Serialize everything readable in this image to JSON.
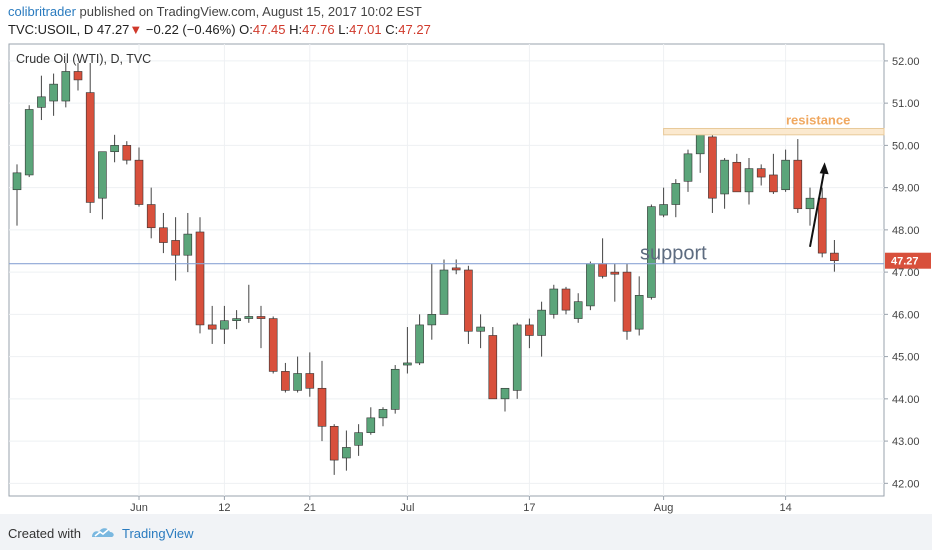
{
  "header": {
    "author": "colibritrader",
    "published_text": "published on TradingView.com, August 15, 2017 10:02 EST",
    "symbol": "TVC:USOIL, D",
    "last": "47.27",
    "change": "−0.22 (−0.46%)",
    "open_label": "O:",
    "open": "47.45",
    "high_label": "H:",
    "high": "47.76",
    "low_label": "L:",
    "low": "47.01",
    "close_label": "C:",
    "close": "47.27"
  },
  "footer": {
    "created_with": "Created with",
    "brand": "TradingView"
  },
  "colors": {
    "up": "#5ba57a",
    "down": "#d8503c",
    "wick": "#444444",
    "support_line": "#8da6d6",
    "resistance_fill": "#fbe9cf",
    "resistance_text": "#f0a860",
    "price_tag": "#d8503c"
  },
  "chart_data": {
    "type": "candlestick",
    "title": "Crude Oil (WTI), D, TVC",
    "ylim": [
      41.7,
      52.4
    ],
    "y_ticks": [
      "52.00",
      "51.00",
      "50.00",
      "49.00",
      "48.00",
      "47.00",
      "46.00",
      "45.00",
      "44.00",
      "43.00",
      "42.00"
    ],
    "x_tick_labels": [
      {
        "label": "Jun",
        "index": 10
      },
      {
        "label": "12",
        "index": 17
      },
      {
        "label": "21",
        "index": 24
      },
      {
        "label": "Jul",
        "index": 32
      },
      {
        "label": "17",
        "index": 42
      },
      {
        "label": "Aug",
        "index": 53
      },
      {
        "label": "14",
        "index": 63
      }
    ],
    "last_price": "47.27",
    "support": {
      "label": "support",
      "value": 47.2
    },
    "resistance": {
      "label": "resistance",
      "low": 50.25,
      "high": 50.4,
      "from_index": 53
    },
    "arrow": {
      "from_index": 65,
      "from_value": 47.6,
      "to_index": 66.2,
      "to_value": 49.6
    },
    "candles": [
      {
        "o": 48.95,
        "h": 49.55,
        "l": 48.1,
        "c": 49.35
      },
      {
        "o": 49.3,
        "h": 50.95,
        "l": 49.25,
        "c": 50.85
      },
      {
        "o": 50.9,
        "h": 51.65,
        "l": 50.6,
        "c": 51.15
      },
      {
        "o": 51.05,
        "h": 51.7,
        "l": 50.7,
        "c": 51.45
      },
      {
        "o": 51.05,
        "h": 51.95,
        "l": 50.9,
        "c": 51.75
      },
      {
        "o": 51.75,
        "h": 51.95,
        "l": 51.3,
        "c": 51.55
      },
      {
        "o": 51.25,
        "h": 51.95,
        "l": 48.4,
        "c": 48.65
      },
      {
        "o": 48.75,
        "h": 49.8,
        "l": 48.25,
        "c": 49.85
      },
      {
        "o": 49.85,
        "h": 50.25,
        "l": 49.6,
        "c": 50.0
      },
      {
        "o": 50.0,
        "h": 50.1,
        "l": 49.55,
        "c": 49.65
      },
      {
        "o": 49.65,
        "h": 49.95,
        "l": 48.55,
        "c": 48.6
      },
      {
        "o": 48.6,
        "h": 49.0,
        "l": 47.8,
        "c": 48.05
      },
      {
        "o": 48.05,
        "h": 48.4,
        "l": 47.45,
        "c": 47.7
      },
      {
        "o": 47.75,
        "h": 48.3,
        "l": 46.8,
        "c": 47.4
      },
      {
        "o": 47.4,
        "h": 48.4,
        "l": 47.0,
        "c": 47.9
      },
      {
        "o": 47.95,
        "h": 48.3,
        "l": 45.55,
        "c": 45.75
      },
      {
        "o": 45.75,
        "h": 46.2,
        "l": 45.3,
        "c": 45.65
      },
      {
        "o": 45.65,
        "h": 46.2,
        "l": 45.3,
        "c": 45.85
      },
      {
        "o": 45.85,
        "h": 46.1,
        "l": 45.65,
        "c": 45.9
      },
      {
        "o": 45.9,
        "h": 46.7,
        "l": 45.8,
        "c": 45.95
      },
      {
        "o": 45.95,
        "h": 46.2,
        "l": 45.2,
        "c": 45.9
      },
      {
        "o": 45.9,
        "h": 45.95,
        "l": 44.6,
        "c": 44.65
      },
      {
        "o": 44.65,
        "h": 44.85,
        "l": 44.15,
        "c": 44.2
      },
      {
        "o": 44.2,
        "h": 45.0,
        "l": 44.15,
        "c": 44.6
      },
      {
        "o": 44.6,
        "h": 45.1,
        "l": 44.05,
        "c": 44.25
      },
      {
        "o": 44.25,
        "h": 44.9,
        "l": 43.0,
        "c": 43.35
      },
      {
        "o": 43.35,
        "h": 43.4,
        "l": 42.2,
        "c": 42.55
      },
      {
        "o": 42.6,
        "h": 43.25,
        "l": 42.3,
        "c": 42.85
      },
      {
        "o": 42.9,
        "h": 43.4,
        "l": 42.65,
        "c": 43.2
      },
      {
        "o": 43.2,
        "h": 43.8,
        "l": 43.15,
        "c": 43.55
      },
      {
        "o": 43.55,
        "h": 43.8,
        "l": 43.35,
        "c": 43.75
      },
      {
        "o": 43.75,
        "h": 44.8,
        "l": 43.65,
        "c": 44.7
      },
      {
        "o": 44.8,
        "h": 45.7,
        "l": 44.6,
        "c": 44.85
      },
      {
        "o": 44.85,
        "h": 46.0,
        "l": 44.8,
        "c": 45.75
      },
      {
        "o": 45.75,
        "h": 47.2,
        "l": 45.4,
        "c": 46.0
      },
      {
        "o": 46.0,
        "h": 47.3,
        "l": 46.0,
        "c": 47.05
      },
      {
        "o": 47.1,
        "h": 47.3,
        "l": 46.95,
        "c": 47.05
      },
      {
        "o": 47.05,
        "h": 47.15,
        "l": 45.3,
        "c": 45.6
      },
      {
        "o": 45.6,
        "h": 46.0,
        "l": 45.2,
        "c": 45.7
      },
      {
        "o": 45.5,
        "h": 45.7,
        "l": 44.0,
        "c": 44.0
      },
      {
        "o": 44.0,
        "h": 44.25,
        "l": 43.7,
        "c": 44.25
      },
      {
        "o": 44.2,
        "h": 45.8,
        "l": 44.0,
        "c": 45.75
      },
      {
        "o": 45.75,
        "h": 45.9,
        "l": 45.2,
        "c": 45.5
      },
      {
        "o": 45.5,
        "h": 46.3,
        "l": 45.0,
        "c": 46.1
      },
      {
        "o": 46.0,
        "h": 46.7,
        "l": 45.9,
        "c": 46.6
      },
      {
        "o": 46.6,
        "h": 46.65,
        "l": 46.0,
        "c": 46.1
      },
      {
        "o": 45.9,
        "h": 46.5,
        "l": 45.8,
        "c": 46.3
      },
      {
        "o": 46.2,
        "h": 47.25,
        "l": 46.1,
        "c": 47.2
      },
      {
        "o": 47.2,
        "h": 47.8,
        "l": 46.85,
        "c": 46.9
      },
      {
        "o": 47.0,
        "h": 47.2,
        "l": 46.3,
        "c": 46.95
      },
      {
        "o": 47.0,
        "h": 47.2,
        "l": 45.4,
        "c": 45.6
      },
      {
        "o": 45.65,
        "h": 46.9,
        "l": 45.5,
        "c": 46.45
      },
      {
        "o": 46.4,
        "h": 48.6,
        "l": 46.35,
        "c": 48.55
      },
      {
        "o": 48.35,
        "h": 49.0,
        "l": 48.3,
        "c": 48.6
      },
      {
        "o": 48.6,
        "h": 49.2,
        "l": 48.3,
        "c": 49.1
      },
      {
        "o": 49.15,
        "h": 49.9,
        "l": 48.9,
        "c": 49.8
      },
      {
        "o": 49.8,
        "h": 50.4,
        "l": 49.35,
        "c": 50.25
      },
      {
        "o": 50.2,
        "h": 50.3,
        "l": 48.4,
        "c": 48.75
      },
      {
        "o": 48.85,
        "h": 49.7,
        "l": 48.5,
        "c": 49.65
      },
      {
        "o": 49.6,
        "h": 49.8,
        "l": 48.9,
        "c": 48.9
      },
      {
        "o": 48.9,
        "h": 49.7,
        "l": 48.6,
        "c": 49.45
      },
      {
        "o": 49.45,
        "h": 49.55,
        "l": 49.05,
        "c": 49.25
      },
      {
        "o": 49.3,
        "h": 49.8,
        "l": 48.85,
        "c": 48.9
      },
      {
        "o": 48.95,
        "h": 49.9,
        "l": 48.9,
        "c": 49.65
      },
      {
        "o": 49.65,
        "h": 50.15,
        "l": 48.4,
        "c": 48.5
      },
      {
        "o": 48.5,
        "h": 49.0,
        "l": 48.1,
        "c": 48.75
      },
      {
        "o": 48.75,
        "h": 49.0,
        "l": 47.35,
        "c": 47.45
      },
      {
        "o": 47.45,
        "h": 47.76,
        "l": 47.01,
        "c": 47.27
      }
    ]
  }
}
